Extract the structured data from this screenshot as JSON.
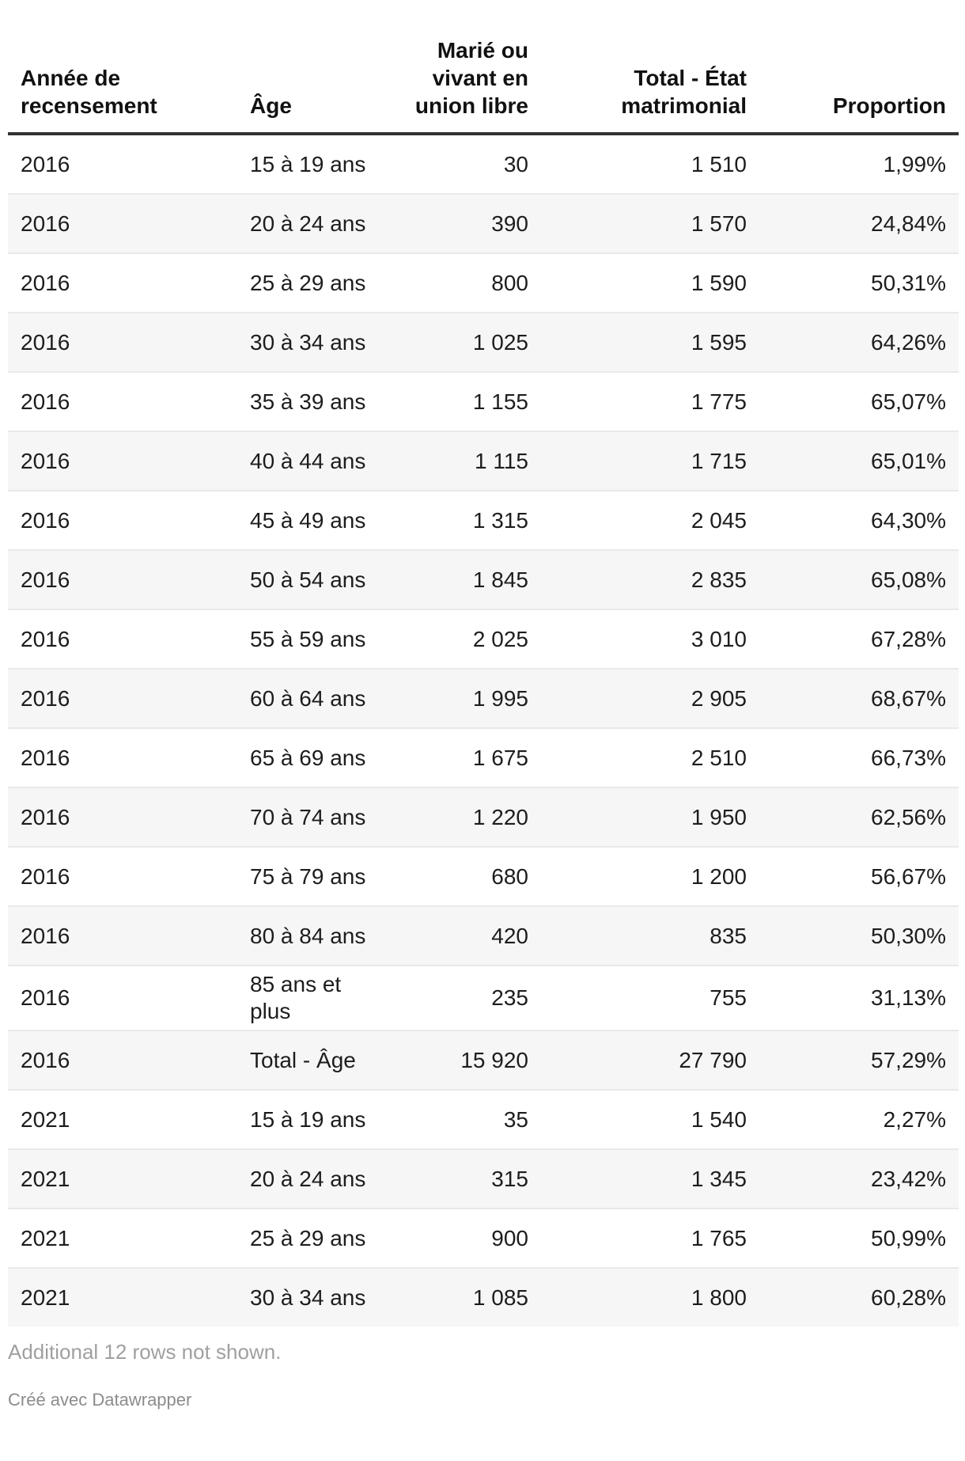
{
  "chart_data": {
    "type": "table",
    "columns": [
      {
        "label": "Année de recensement",
        "align": "left"
      },
      {
        "label": "Âge",
        "align": "left"
      },
      {
        "label": "Marié ou vivant en union libre",
        "align": "right"
      },
      {
        "label": "Total - État matrimonial",
        "align": "right"
      },
      {
        "label": "Proportion",
        "align": "right"
      }
    ],
    "rows": [
      {
        "year": "2016",
        "age": "15 à 19 ans",
        "married": "30",
        "total": "1 510",
        "proportion": "1,99%"
      },
      {
        "year": "2016",
        "age": "20 à 24 ans",
        "married": "390",
        "total": "1 570",
        "proportion": "24,84%"
      },
      {
        "year": "2016",
        "age": "25 à 29 ans",
        "married": "800",
        "total": "1 590",
        "proportion": "50,31%"
      },
      {
        "year": "2016",
        "age": "30 à 34 ans",
        "married": "1 025",
        "total": "1 595",
        "proportion": "64,26%"
      },
      {
        "year": "2016",
        "age": "35 à 39 ans",
        "married": "1 155",
        "total": "1 775",
        "proportion": "65,07%"
      },
      {
        "year": "2016",
        "age": "40 à 44 ans",
        "married": "1 115",
        "total": "1 715",
        "proportion": "65,01%"
      },
      {
        "year": "2016",
        "age": "45 à 49 ans",
        "married": "1 315",
        "total": "2 045",
        "proportion": "64,30%"
      },
      {
        "year": "2016",
        "age": "50 à 54 ans",
        "married": "1 845",
        "total": "2 835",
        "proportion": "65,08%"
      },
      {
        "year": "2016",
        "age": "55 à 59 ans",
        "married": "2 025",
        "total": "3 010",
        "proportion": "67,28%"
      },
      {
        "year": "2016",
        "age": "60 à 64 ans",
        "married": "1 995",
        "total": "2 905",
        "proportion": "68,67%"
      },
      {
        "year": "2016",
        "age": "65 à 69 ans",
        "married": "1 675",
        "total": "2 510",
        "proportion": "66,73%"
      },
      {
        "year": "2016",
        "age": "70 à 74 ans",
        "married": "1 220",
        "total": "1 950",
        "proportion": "62,56%"
      },
      {
        "year": "2016",
        "age": "75 à 79 ans",
        "married": "680",
        "total": "1 200",
        "proportion": "56,67%"
      },
      {
        "year": "2016",
        "age": "80 à 84 ans",
        "married": "420",
        "total": "835",
        "proportion": "50,30%"
      },
      {
        "year": "2016",
        "age": "85 ans et plus",
        "married": "235",
        "total": "755",
        "proportion": "31,13%"
      },
      {
        "year": "2016",
        "age": "Total - Âge",
        "married": "15 920",
        "total": "27 790",
        "proportion": "57,29%"
      },
      {
        "year": "2021",
        "age": "15 à 19 ans",
        "married": "35",
        "total": "1 540",
        "proportion": "2,27%"
      },
      {
        "year": "2021",
        "age": "20 à 24 ans",
        "married": "315",
        "total": "1 345",
        "proportion": "23,42%"
      },
      {
        "year": "2021",
        "age": "25 à 29 ans",
        "married": "900",
        "total": "1 765",
        "proportion": "50,99%"
      },
      {
        "year": "2021",
        "age": "30 à 34 ans",
        "married": "1 085",
        "total": "1 800",
        "proportion": "60,28%"
      }
    ]
  },
  "footer": {
    "note": "Additional 12 rows not shown.",
    "attribution": "Créé avec Datawrapper"
  },
  "colors": {
    "stripe": "#f6f6f6",
    "row_border": "#e9e9e9",
    "header_border": "#333333",
    "text": "#1d1d1d",
    "note_text": "#a0a0a0",
    "attribution_text": "#8c8c8c"
  }
}
